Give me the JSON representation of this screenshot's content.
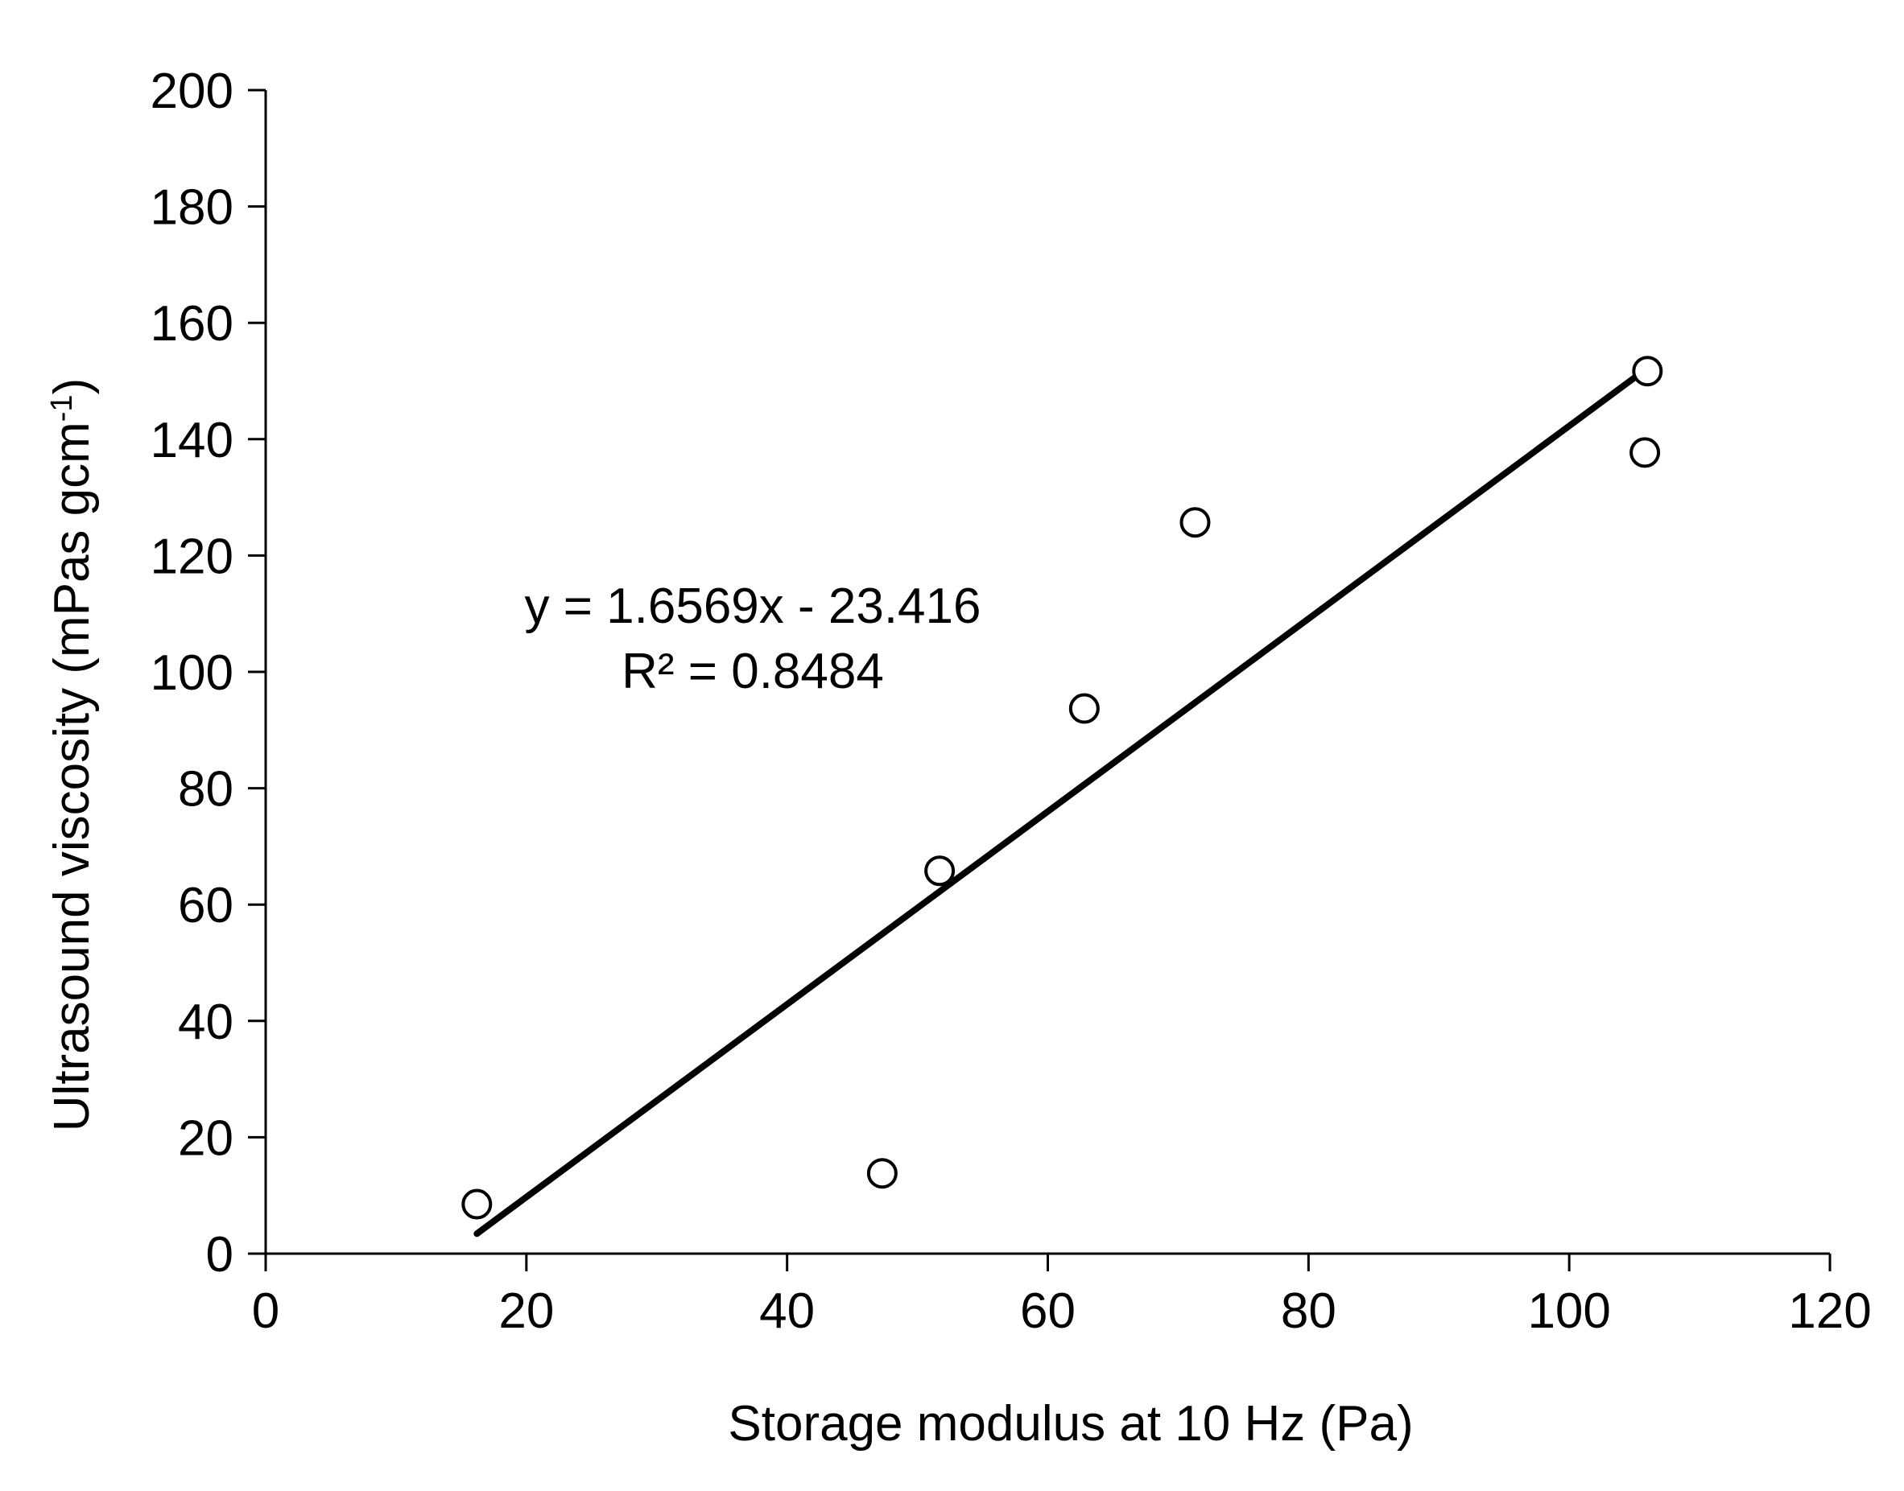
{
  "chart_data": {
    "type": "scatter",
    "title": "",
    "xlabel": "Storage modulus at 10 Hz (Pa)",
    "ylabel": "Ultrasound viscosity (mPas gcm",
    "ylabel_sup": "-1",
    "ylabel_suffix": ")",
    "xlim": [
      0,
      120
    ],
    "ylim": [
      0,
      200
    ],
    "x_ticks": [
      0,
      20,
      40,
      60,
      80,
      100,
      120
    ],
    "y_ticks": [
      0,
      20,
      40,
      60,
      80,
      100,
      120,
      140,
      160,
      180,
      200
    ],
    "grid": false,
    "legend": "none",
    "series": [
      {
        "x": [
          16.2,
          47.3,
          51.7,
          62.8,
          71.3,
          105.8,
          106.0
        ],
        "y": [
          8.5,
          13.8,
          65.8,
          93.7,
          125.7,
          137.7,
          151.7
        ]
      }
    ],
    "trendline": {
      "slope": 1.6569,
      "intercept": -23.416,
      "x_range": [
        16.2,
        106.0
      ],
      "equation": "y = 1.6569x - 23.416",
      "r_squared": "R² = 0.8484"
    }
  }
}
